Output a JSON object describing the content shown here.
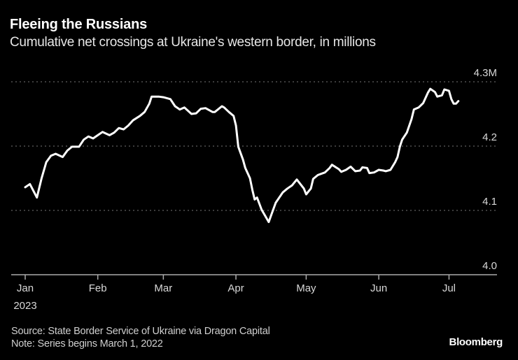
{
  "chart_data": {
    "type": "line",
    "title": "Fleeing the Russians",
    "subtitle": "Cumulative net crossings at Ukraine's western border, in millions",
    "ylim": [
      4.0,
      4.3
    ],
    "yticks": [
      {
        "value": 4.3,
        "label": "4.3M"
      },
      {
        "value": 4.2,
        "label": "4.2"
      },
      {
        "value": 4.1,
        "label": "4.1"
      },
      {
        "value": 4.0,
        "label": "4.0"
      }
    ],
    "xticks": [
      {
        "date": "2023-01-01",
        "label": "Jan",
        "sublabel": "2023"
      },
      {
        "date": "2023-02-01",
        "label": "Feb"
      },
      {
        "date": "2023-03-01",
        "label": "Mar"
      },
      {
        "date": "2023-04-01",
        "label": "Apr"
      },
      {
        "date": "2023-05-01",
        "label": "May"
      },
      {
        "date": "2023-06-01",
        "label": "Jun"
      },
      {
        "date": "2023-07-01",
        "label": "Jul"
      }
    ],
    "grid": "horizontal-dotted",
    "line_color": "#ffffff",
    "series": [
      {
        "points": [
          [
            "2023-01-01",
            4.136
          ],
          [
            "2023-01-03",
            4.141
          ],
          [
            "2023-01-06",
            4.12
          ],
          [
            "2023-01-08",
            4.15
          ],
          [
            "2023-01-10",
            4.175
          ],
          [
            "2023-01-12",
            4.185
          ],
          [
            "2023-01-14",
            4.188
          ],
          [
            "2023-01-17",
            4.183
          ],
          [
            "2023-01-19",
            4.193
          ],
          [
            "2023-01-21",
            4.199
          ],
          [
            "2023-01-24",
            4.199
          ],
          [
            "2023-01-26",
            4.21
          ],
          [
            "2023-01-28",
            4.215
          ],
          [
            "2023-01-30",
            4.212
          ],
          [
            "2023-02-01",
            4.217
          ],
          [
            "2023-02-03",
            4.222
          ],
          [
            "2023-02-06",
            4.217
          ],
          [
            "2023-02-08",
            4.221
          ],
          [
            "2023-02-10",
            4.228
          ],
          [
            "2023-02-12",
            4.226
          ],
          [
            "2023-02-14",
            4.232
          ],
          [
            "2023-02-16",
            4.24
          ],
          [
            "2023-02-19",
            4.247
          ],
          [
            "2023-02-21",
            4.253
          ],
          [
            "2023-02-23",
            4.266
          ],
          [
            "2023-02-24",
            4.277
          ],
          [
            "2023-02-27",
            4.277
          ],
          [
            "2023-03-01",
            4.276
          ],
          [
            "2023-03-04",
            4.273
          ],
          [
            "2023-03-06",
            4.262
          ],
          [
            "2023-03-08",
            4.257
          ],
          [
            "2023-03-10",
            4.26
          ],
          [
            "2023-03-13",
            4.25
          ],
          [
            "2023-03-15",
            4.251
          ],
          [
            "2023-03-17",
            4.258
          ],
          [
            "2023-03-19",
            4.259
          ],
          [
            "2023-03-22",
            4.253
          ],
          [
            "2023-03-23",
            4.253
          ],
          [
            "2023-03-26",
            4.262
          ],
          [
            "2023-03-27",
            4.26
          ],
          [
            "2023-03-29",
            4.253
          ],
          [
            "2023-03-31",
            4.247
          ],
          [
            "2023-04-01",
            4.232
          ],
          [
            "2023-04-02",
            4.199
          ],
          [
            "2023-04-04",
            4.179
          ],
          [
            "2023-04-05",
            4.166
          ],
          [
            "2023-04-07",
            4.15
          ],
          [
            "2023-04-08",
            4.132
          ],
          [
            "2023-04-09",
            4.117
          ],
          [
            "2023-04-10",
            4.12
          ],
          [
            "2023-04-12",
            4.101
          ],
          [
            "2023-04-15",
            4.082
          ],
          [
            "2023-04-16",
            4.092
          ],
          [
            "2023-04-18",
            4.112
          ],
          [
            "2023-04-21",
            4.128
          ],
          [
            "2023-04-23",
            4.134
          ],
          [
            "2023-04-25",
            4.139
          ],
          [
            "2023-04-27",
            4.148
          ],
          [
            "2023-04-30",
            4.134
          ],
          [
            "2023-05-01",
            4.125
          ],
          [
            "2023-05-03",
            4.134
          ],
          [
            "2023-05-04",
            4.149
          ],
          [
            "2023-05-06",
            4.155
          ],
          [
            "2023-05-09",
            4.159
          ],
          [
            "2023-05-11",
            4.166
          ],
          [
            "2023-05-12",
            4.171
          ],
          [
            "2023-05-15",
            4.164
          ],
          [
            "2023-05-16",
            4.16
          ],
          [
            "2023-05-18",
            4.163
          ],
          [
            "2023-05-20",
            4.168
          ],
          [
            "2023-05-22",
            4.161
          ],
          [
            "2023-05-24",
            4.162
          ],
          [
            "2023-05-25",
            4.167
          ],
          [
            "2023-05-27",
            4.166
          ],
          [
            "2023-05-28",
            4.158
          ],
          [
            "2023-05-30",
            4.159
          ],
          [
            "2023-06-01",
            4.163
          ],
          [
            "2023-06-03",
            4.162
          ],
          [
            "2023-06-04",
            4.161
          ],
          [
            "2023-06-06",
            4.163
          ],
          [
            "2023-06-08",
            4.175
          ],
          [
            "2023-06-09",
            4.183
          ],
          [
            "2023-06-10",
            4.199
          ],
          [
            "2023-06-11",
            4.21
          ],
          [
            "2023-06-13",
            4.221
          ],
          [
            "2023-06-15",
            4.242
          ],
          [
            "2023-06-16",
            4.257
          ],
          [
            "2023-06-18",
            4.26
          ],
          [
            "2023-06-20",
            4.267
          ],
          [
            "2023-06-22",
            4.283
          ],
          [
            "2023-06-23",
            4.289
          ],
          [
            "2023-06-25",
            4.284
          ],
          [
            "2023-06-26",
            4.277
          ],
          [
            "2023-06-28",
            4.279
          ],
          [
            "2023-06-29",
            4.288
          ],
          [
            "2023-07-01",
            4.286
          ],
          [
            "2023-07-02",
            4.273
          ],
          [
            "2023-07-03",
            4.266
          ],
          [
            "2023-07-04",
            4.266
          ],
          [
            "2023-07-05",
            4.27
          ]
        ]
      }
    ]
  },
  "footer": {
    "source": "Source: State Border Service of Ukraine via Dragon Capital",
    "note": "Note: Series begins March 1, 2022",
    "logo": "Bloomberg"
  }
}
